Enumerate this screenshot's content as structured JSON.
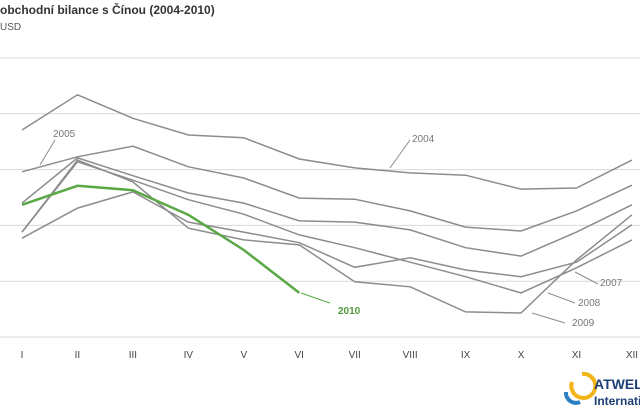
{
  "chart_data": {
    "type": "line",
    "title": "obchodní bilance s Čínou (2004-2010)",
    "subtitle": "USD",
    "categories": [
      "I",
      "II",
      "III",
      "IV",
      "V",
      "VI",
      "VII",
      "VIII",
      "IX",
      "X",
      "XI",
      "XII"
    ],
    "ylim": [
      0,
      5
    ],
    "ygrid": [
      0,
      1,
      2,
      3,
      4,
      5
    ],
    "grid": true,
    "series": [
      {
        "name": "2004",
        "color": "#8c8c8c",
        "values": [
          3.71,
          4.34,
          3.92,
          3.62,
          3.57,
          3.19,
          3.03,
          2.94,
          2.9,
          2.65,
          2.67,
          3.17
        ]
      },
      {
        "name": "2005",
        "color": "#8c8c8c",
        "values": [
          2.96,
          3.23,
          3.42,
          3.05,
          2.85,
          2.49,
          2.47,
          2.26,
          1.97,
          1.9,
          2.26,
          2.72
        ]
      },
      {
        "color": "#8c8c8c",
        "values": [
          2.4,
          3.21,
          2.89,
          2.58,
          2.4,
          2.08,
          2.06,
          1.92,
          1.6,
          1.45,
          1.88,
          2.37
        ]
      },
      {
        "name": "2007",
        "color": "#8c8c8c",
        "values": [
          1.77,
          2.31,
          2.6,
          2.06,
          1.88,
          1.69,
          1.25,
          1.42,
          1.2,
          1.08,
          1.34,
          2.01
        ]
      },
      {
        "name": "2008",
        "color": "#8c8c8c",
        "values": [
          1.88,
          3.14,
          2.81,
          2.46,
          2.2,
          1.83,
          1.6,
          1.34,
          1.08,
          0.79,
          1.24,
          1.74
        ]
      },
      {
        "name": "2009",
        "color": "#8c8c8c",
        "values": [
          1.88,
          3.17,
          2.78,
          1.95,
          1.74,
          1.65,
          0.99,
          0.9,
          0.45,
          0.43,
          1.38,
          2.19
        ]
      },
      {
        "name": "2010",
        "color": "#5aa846",
        "values": [
          2.37,
          2.71,
          2.63,
          2.19,
          1.56,
          0.79,
          null,
          null,
          null,
          null,
          null,
          null
        ]
      }
    ]
  },
  "logo": {
    "line1": "ATWEL",
    "line2": "Internatio"
  }
}
